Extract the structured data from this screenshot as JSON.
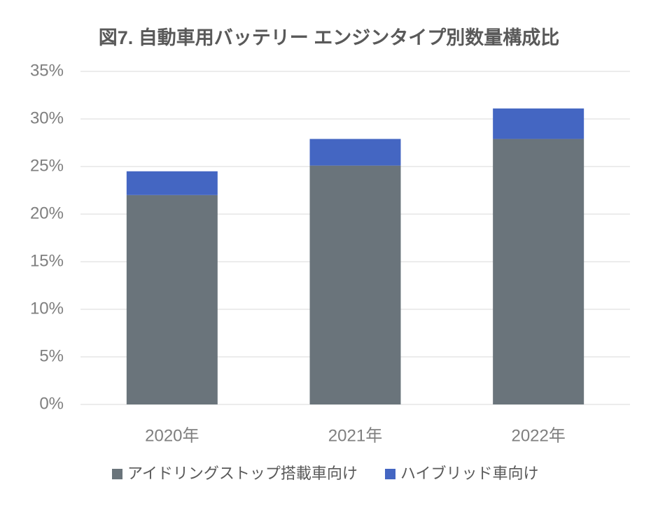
{
  "chart_data": {
    "type": "stacked_bar",
    "title": "図7. 自動車用バッテリー エンジンタイプ別数量構成比",
    "categories": [
      "2020年",
      "2021年",
      "2022年"
    ],
    "series": [
      {
        "name": "アイドリングストップ搭載車向け",
        "color": "#6a747b",
        "values": [
          22.0,
          25.1,
          27.9
        ]
      },
      {
        "name": "ハイブリッド車向け",
        "color": "#4466c2",
        "values": [
          2.5,
          2.8,
          3.2
        ]
      }
    ],
    "ylim": [
      0,
      35
    ],
    "yticks": [
      {
        "value": 0,
        "label": "0%"
      },
      {
        "value": 5,
        "label": "5%"
      },
      {
        "value": 10,
        "label": "10%"
      },
      {
        "value": 15,
        "label": "15%"
      },
      {
        "value": 20,
        "label": "20%"
      },
      {
        "value": 25,
        "label": "25%"
      },
      {
        "value": 30,
        "label": "30%"
      },
      {
        "value": 35,
        "label": "35%"
      }
    ],
    "grid": true
  }
}
